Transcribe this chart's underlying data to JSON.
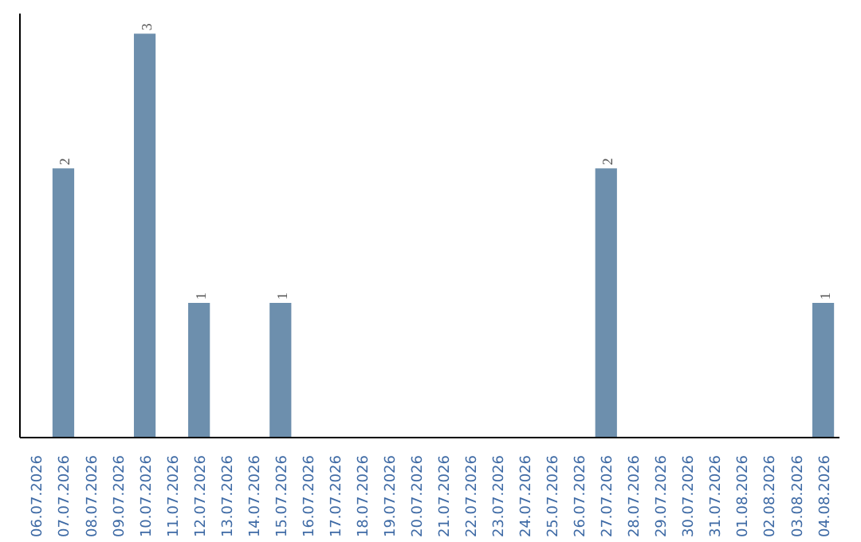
{
  "chart_data": {
    "type": "bar",
    "categories": [
      "06.07.2026",
      "07.07.2026",
      "08.07.2026",
      "09.07.2026",
      "10.07.2026",
      "11.07.2026",
      "12.07.2026",
      "13.07.2026",
      "14.07.2026",
      "15.07.2026",
      "16.07.2026",
      "17.07.2026",
      "18.07.2026",
      "19.07.2026",
      "20.07.2026",
      "21.07.2026",
      "22.07.2026",
      "23.07.2026",
      "24.07.2026",
      "25.07.2026",
      "26.07.2026",
      "27.07.2026",
      "28.07.2026",
      "29.07.2026",
      "30.07.2026",
      "31.07.2026",
      "01.08.2026",
      "02.08.2026",
      "03.08.2026",
      "04.08.2026"
    ],
    "values": [
      0,
      2,
      0,
      0,
      3,
      0,
      1,
      0,
      0,
      1,
      0,
      0,
      0,
      0,
      0,
      0,
      0,
      0,
      0,
      0,
      0,
      2,
      0,
      0,
      0,
      0,
      0,
      0,
      0,
      1
    ],
    "value_labels": [
      null,
      "2",
      null,
      null,
      "3",
      null,
      "1",
      null,
      null,
      "1",
      null,
      null,
      null,
      null,
      null,
      null,
      null,
      null,
      null,
      null,
      null,
      "2",
      null,
      null,
      null,
      null,
      null,
      null,
      null,
      "1"
    ],
    "color": "#6d8fad",
    "tick_labels": "x",
    "grid": false
  }
}
